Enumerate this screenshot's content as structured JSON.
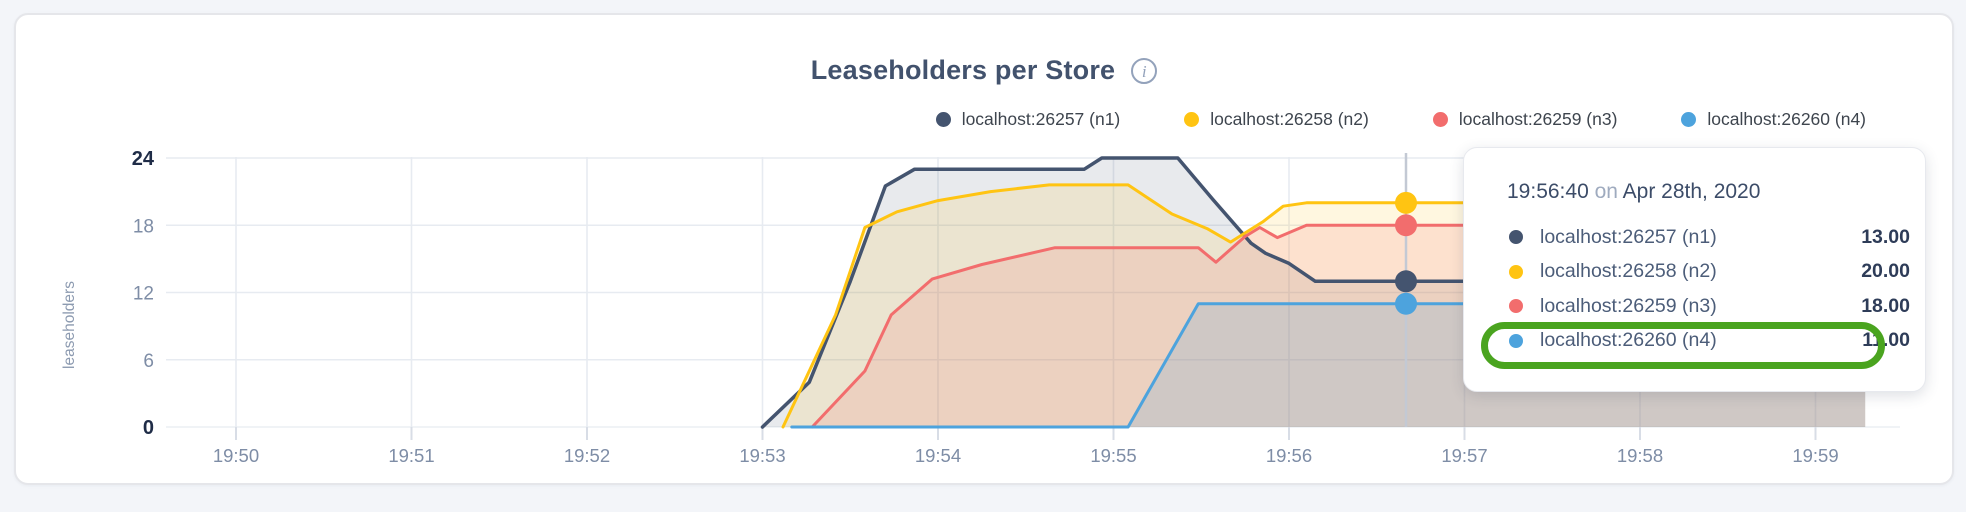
{
  "header": {
    "title": "Leaseholders per Store",
    "info_glyph": "i"
  },
  "legend": [
    {
      "label": "localhost:26257 (n1)",
      "color": "#44546f"
    },
    {
      "label": "localhost:26258 (n2)",
      "color": "#ffc412"
    },
    {
      "label": "localhost:26259 (n3)",
      "color": "#f26d6d"
    },
    {
      "label": "localhost:26260 (n4)",
      "color": "#4da3dd"
    }
  ],
  "chart_data": {
    "type": "area",
    "title": "Leaseholders per Store",
    "ylabel": "leaseholders",
    "x_axis": {
      "start_label": "19:50",
      "tick_labels": [
        "19:50",
        "19:51",
        "19:52",
        "19:53",
        "19:54",
        "19:55",
        "19:56",
        "19:57",
        "19:58",
        "19:59"
      ],
      "tick_minutes": [
        0,
        1,
        2,
        3,
        4,
        5,
        6,
        7,
        8,
        9
      ]
    },
    "y_axis": {
      "ticks": [
        0,
        6,
        12,
        18,
        24
      ],
      "strong_ticks": [
        0,
        24
      ],
      "ylim": [
        0,
        24
      ],
      "grid": true
    },
    "series": [
      {
        "id": "n1",
        "name": "localhost:26257 (n1)",
        "color": "#44546f",
        "fill": "rgba(68,84,111,0.12)",
        "width": 3.5,
        "points": [
          [
            180,
            0
          ],
          [
            196,
            4
          ],
          [
            210,
            13
          ],
          [
            222,
            21.5
          ],
          [
            232,
            23
          ],
          [
            290,
            23
          ],
          [
            296,
            24
          ],
          [
            322,
            24
          ],
          [
            334,
            20.3
          ],
          [
            347,
            16.4
          ],
          [
            352,
            15.5
          ],
          [
            360,
            14.6
          ],
          [
            369,
            13
          ],
          [
            557,
            13
          ]
        ]
      },
      {
        "id": "n2",
        "name": "localhost:26258 (n2)",
        "color": "#ffc412",
        "fill": "rgba(255,196,18,0.13)",
        "width": 3,
        "points": [
          [
            187,
            0
          ],
          [
            205,
            10
          ],
          [
            215,
            17.8
          ],
          [
            226,
            19.2
          ],
          [
            240,
            20.2
          ],
          [
            258,
            21
          ],
          [
            278,
            21.6
          ],
          [
            305,
            21.6
          ],
          [
            320,
            19
          ],
          [
            332,
            17.7
          ],
          [
            340,
            16.5
          ],
          [
            351,
            18.3
          ],
          [
            358,
            19.7
          ],
          [
            366,
            20
          ],
          [
            557,
            20
          ]
        ]
      },
      {
        "id": "n3",
        "name": "localhost:26259 (n3)",
        "color": "#f26d6d",
        "fill": "rgba(242,109,109,0.16)",
        "width": 3,
        "points": [
          [
            197,
            0
          ],
          [
            215,
            5
          ],
          [
            224,
            10
          ],
          [
            238,
            13.2
          ],
          [
            255,
            14.5
          ],
          [
            280,
            16
          ],
          [
            329,
            16
          ],
          [
            335,
            14.7
          ],
          [
            345,
            17
          ],
          [
            350,
            17.8
          ],
          [
            356,
            16.9
          ],
          [
            366,
            18
          ],
          [
            557,
            18
          ]
        ]
      },
      {
        "id": "n4",
        "name": "localhost:26260 (n4)",
        "color": "#4da3dd",
        "fill": "rgba(77,163,221,0.18)",
        "width": 3,
        "points": [
          [
            190,
            0
          ],
          [
            305,
            0
          ],
          [
            329,
            11
          ],
          [
            557,
            11
          ]
        ]
      }
    ],
    "hover": {
      "time_label": "19:56:40",
      "time_seconds": 400,
      "values": [
        13,
        20,
        18,
        11
      ],
      "line_color": "#c3c9d4"
    },
    "legend_position": "top-right"
  },
  "tooltip": {
    "time": "19:56:40",
    "on_word": "on",
    "date": "Apr 28th, 2020",
    "rows": [
      {
        "label": "localhost:26257 (n1)",
        "value": "13.00",
        "color": "#44546f"
      },
      {
        "label": "localhost:26258 (n2)",
        "value": "20.00",
        "color": "#ffc412"
      },
      {
        "label": "localhost:26259 (n3)",
        "value": "18.00",
        "color": "#f26d6d"
      },
      {
        "label": "localhost:26260 (n4)",
        "value": "11.00",
        "color": "#4da3dd"
      }
    ],
    "highlighted_row_index": 3,
    "highlight_color": "#4aa41f"
  }
}
